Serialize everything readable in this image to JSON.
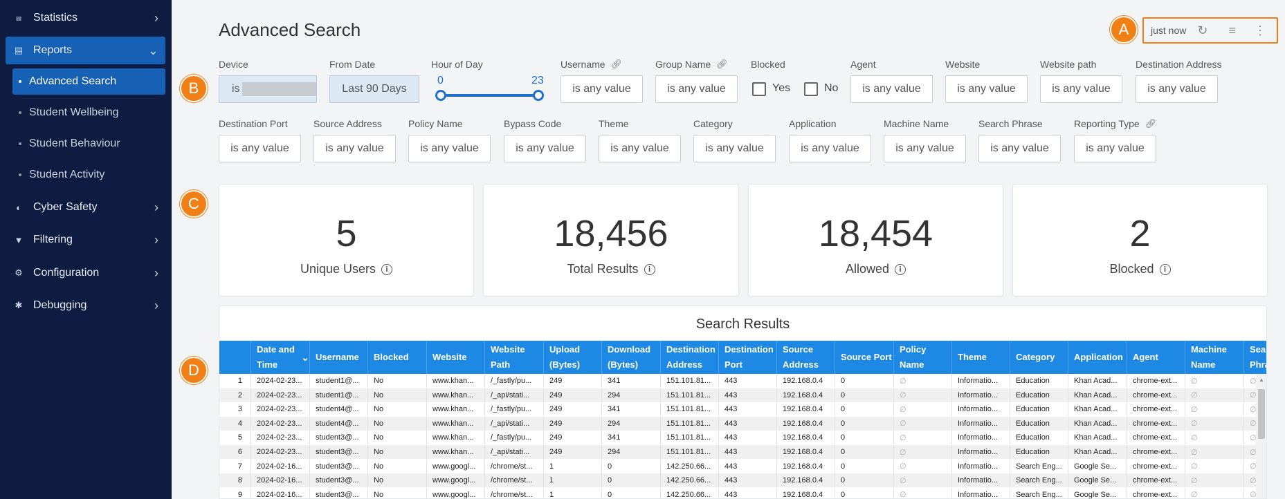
{
  "sidebar": {
    "items": [
      {
        "label": "Statistics",
        "icon": "chart-icon"
      },
      {
        "label": "Reports",
        "icon": "document-icon"
      },
      {
        "label": "Cyber Safety",
        "icon": "shield-icon"
      },
      {
        "label": "Filtering",
        "icon": "filter-icon"
      },
      {
        "label": "Configuration",
        "icon": "gear-icon"
      },
      {
        "label": "Debugging",
        "icon": "bug-icon"
      }
    ],
    "sub_items": [
      {
        "label": "Advanced Search"
      },
      {
        "label": "Student Wellbeing"
      },
      {
        "label": "Student Behaviour"
      },
      {
        "label": "Student Activity"
      }
    ]
  },
  "header": {
    "title": "Advanced Search",
    "refresh_time": "just now"
  },
  "annotations": [
    "A",
    "B",
    "C",
    "D"
  ],
  "filters": {
    "device": {
      "label": "Device",
      "value": "is"
    },
    "from_date": {
      "label": "From Date",
      "value": "Last 90 Days"
    },
    "hour_of_day": {
      "label": "Hour of Day",
      "min": "0",
      "max": "23"
    },
    "blocked": {
      "label": "Blocked",
      "yes": "Yes",
      "no": "No"
    },
    "any_value": "is any value",
    "row1_fields": [
      {
        "label": "Username"
      },
      {
        "label": "Group Name"
      },
      {
        "label": "Agent"
      },
      {
        "label": "Website"
      },
      {
        "label": "Website path"
      },
      {
        "label": "Destination Address"
      }
    ],
    "row2_fields": [
      {
        "label": "Destination Port"
      },
      {
        "label": "Source Address"
      },
      {
        "label": "Policy Name"
      },
      {
        "label": "Bypass Code"
      },
      {
        "label": "Theme"
      },
      {
        "label": "Category"
      },
      {
        "label": "Application"
      },
      {
        "label": "Machine Name"
      },
      {
        "label": "Search Phrase"
      },
      {
        "label": "Reporting Type"
      }
    ]
  },
  "stats": [
    {
      "value": "5",
      "label": "Unique Users"
    },
    {
      "value": "18,456",
      "label": "Total Results"
    },
    {
      "value": "18,454",
      "label": "Allowed"
    },
    {
      "value": "2",
      "label": "Blocked"
    }
  ],
  "results": {
    "title": "Search Results",
    "columns": [
      "Date and Time",
      "Username",
      "Blocked",
      "Website",
      "Website Path",
      "Upload (Bytes)",
      "Download (Bytes)",
      "Destination Address",
      "Destination Port",
      "Source Address",
      "Source Port",
      "Policy Name",
      "Theme",
      "Category",
      "Application",
      "Agent",
      "Machine Name",
      "Search Phrase"
    ],
    "rows": [
      [
        "1",
        "2024-02-23...",
        "student1@...",
        "No",
        "www.khan...",
        "/_fastly/pu...",
        "249",
        "341",
        "151.101.81...",
        "443",
        "192.168.0.4",
        "0",
        "∅",
        "Informatio...",
        "Education",
        "Khan Acad...",
        "chrome-ext...",
        "∅",
        "∅"
      ],
      [
        "2",
        "2024-02-23...",
        "student1@...",
        "No",
        "www.khan...",
        "/_api/stati...",
        "249",
        "294",
        "151.101.81...",
        "443",
        "192.168.0.4",
        "0",
        "∅",
        "Informatio...",
        "Education",
        "Khan Acad...",
        "chrome-ext...",
        "∅",
        "∅"
      ],
      [
        "3",
        "2024-02-23...",
        "student4@...",
        "No",
        "www.khan...",
        "/_fastly/pu...",
        "249",
        "341",
        "151.101.81...",
        "443",
        "192.168.0.4",
        "0",
        "∅",
        "Informatio...",
        "Education",
        "Khan Acad...",
        "chrome-ext...",
        "∅",
        "∅"
      ],
      [
        "4",
        "2024-02-23...",
        "student4@...",
        "No",
        "www.khan...",
        "/_api/stati...",
        "249",
        "294",
        "151.101.81...",
        "443",
        "192.168.0.4",
        "0",
        "∅",
        "Informatio...",
        "Education",
        "Khan Acad...",
        "chrome-ext...",
        "∅",
        "∅"
      ],
      [
        "5",
        "2024-02-23...",
        "student3@...",
        "No",
        "www.khan...",
        "/_fastly/pu...",
        "249",
        "341",
        "151.101.81...",
        "443",
        "192.168.0.4",
        "0",
        "∅",
        "Informatio...",
        "Education",
        "Khan Acad...",
        "chrome-ext...",
        "∅",
        "∅"
      ],
      [
        "6",
        "2024-02-23...",
        "student3@...",
        "No",
        "www.khan...",
        "/_api/stati...",
        "249",
        "294",
        "151.101.81...",
        "443",
        "192.168.0.4",
        "0",
        "∅",
        "Informatio...",
        "Education",
        "Khan Acad...",
        "chrome-ext...",
        "∅",
        "∅"
      ],
      [
        "7",
        "2024-02-16...",
        "student3@...",
        "No",
        "www.googl...",
        "/chrome/st...",
        "1",
        "0",
        "142.250.66...",
        "443",
        "192.168.0.4",
        "0",
        "∅",
        "Informatio...",
        "Search Eng...",
        "Google Se...",
        "chrome-ext...",
        "∅",
        "∅"
      ],
      [
        "8",
        "2024-02-16...",
        "student3@...",
        "No",
        "www.googl...",
        "/chrome/st...",
        "1",
        "0",
        "142.250.66...",
        "443",
        "192.168.0.4",
        "0",
        "∅",
        "Informatio...",
        "Search Eng...",
        "Google Se...",
        "chrome-ext...",
        "∅",
        "∅"
      ],
      [
        "9",
        "2024-02-16...",
        "student3@...",
        "No",
        "www.googl...",
        "/chrome/st...",
        "1",
        "0",
        "142.250.66...",
        "443",
        "192.168.0.4",
        "0",
        "∅",
        "Informatio...",
        "Search Eng...",
        "Google Se...",
        "chrome-ext...",
        "∅",
        "∅"
      ]
    ]
  },
  "colors": {
    "sidebar_bg": "#0d1c40",
    "accent": "#1660b6",
    "table_header": "#1e88e5",
    "annotation": "#f07f16"
  }
}
